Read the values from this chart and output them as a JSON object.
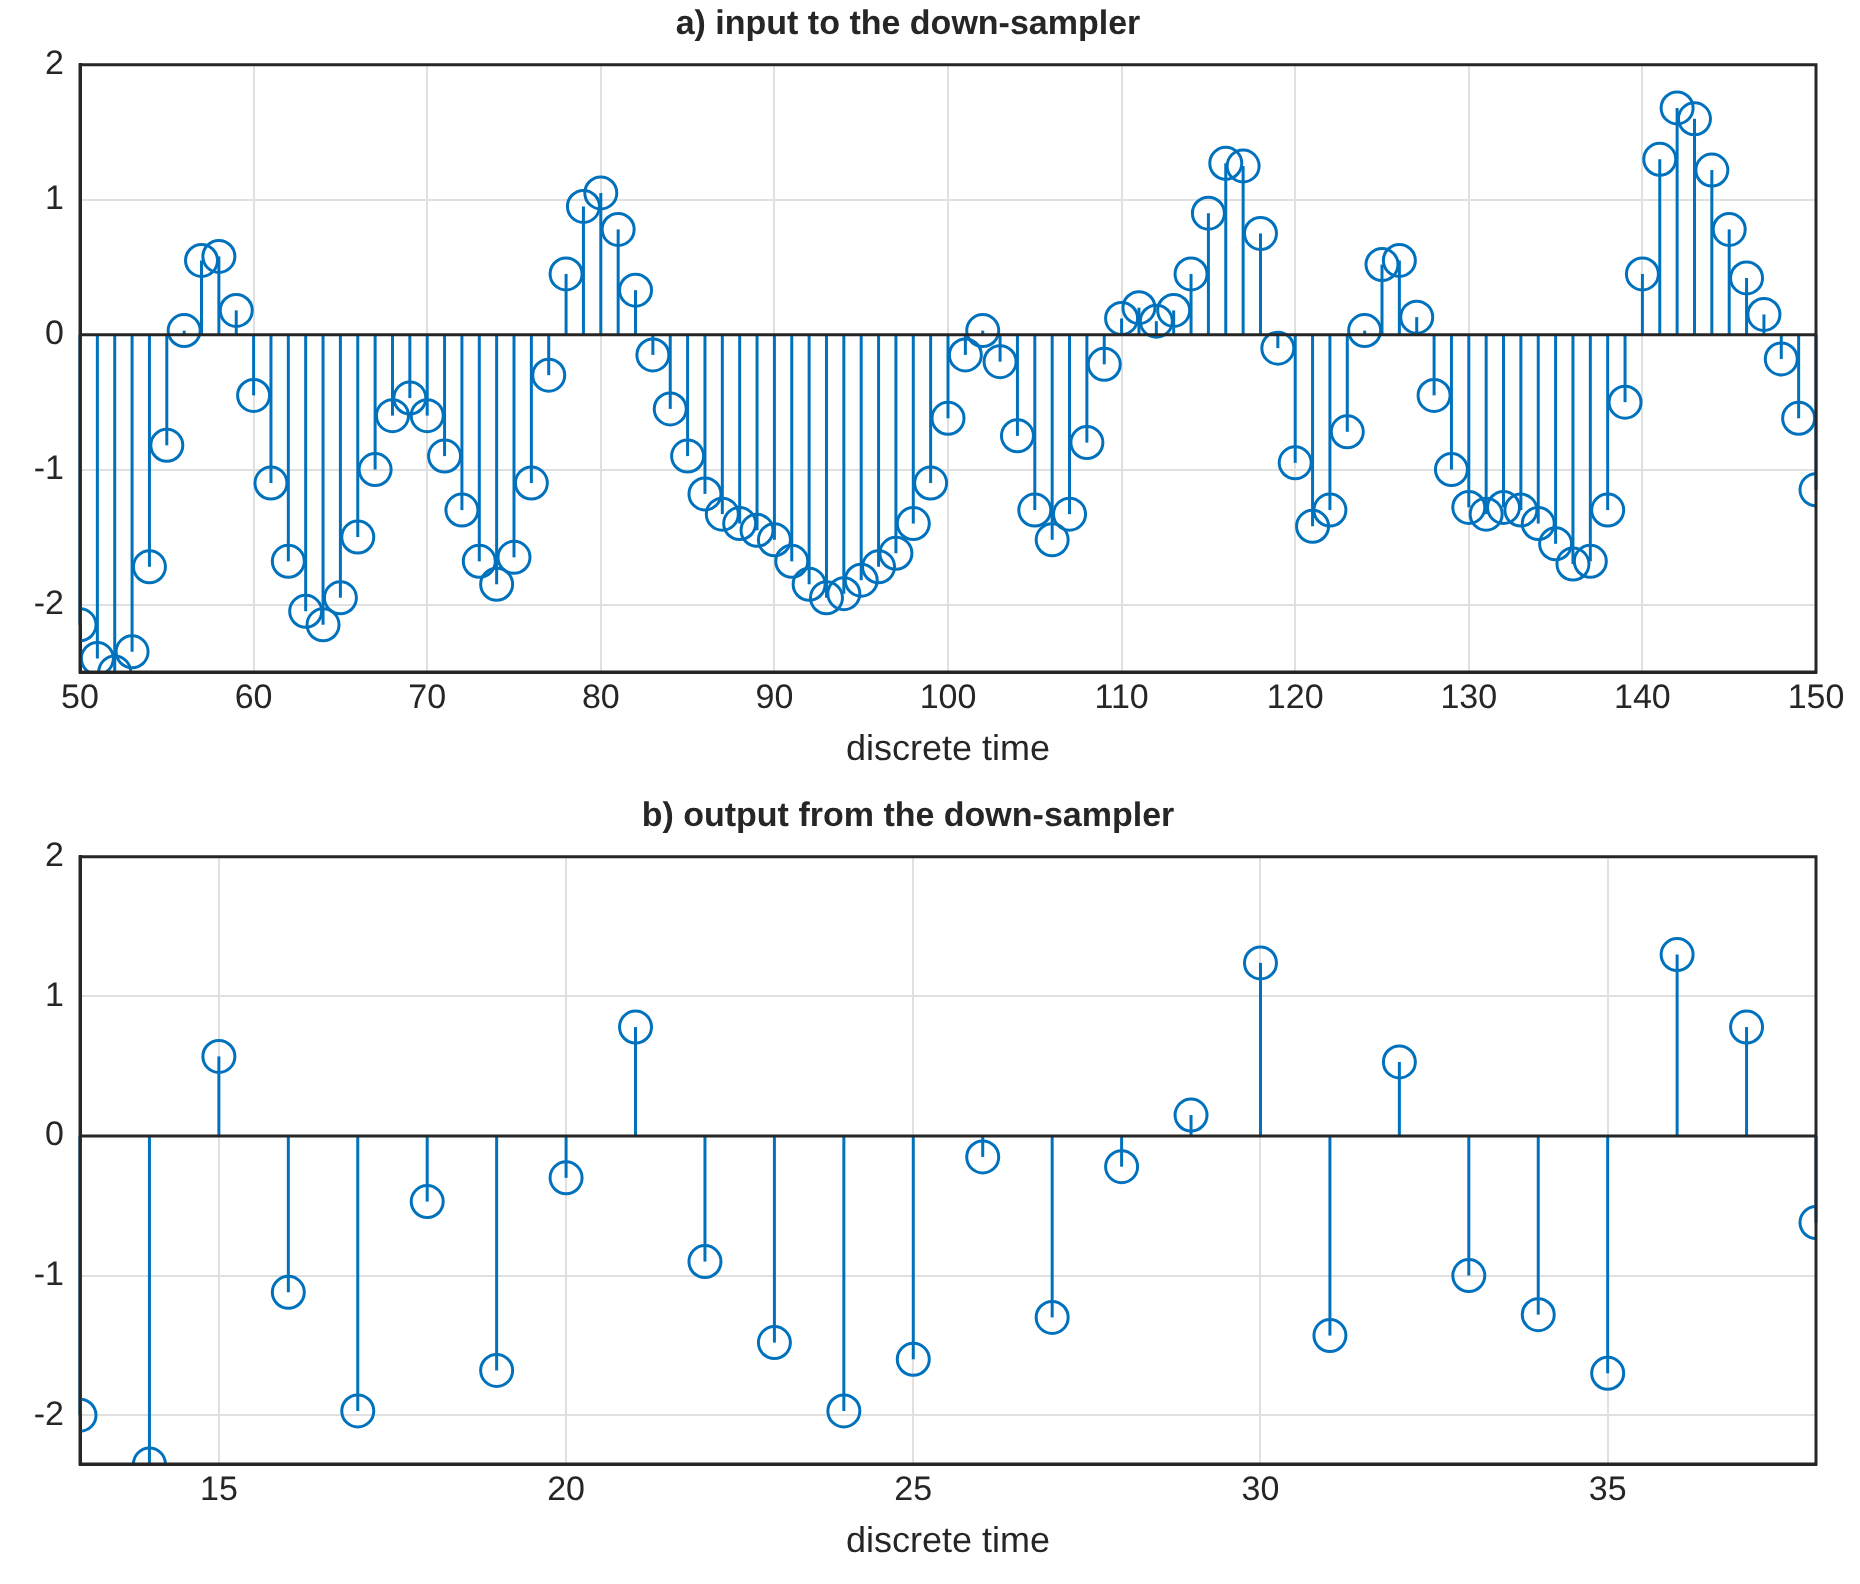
{
  "chart_data": [
    {
      "type": "lollipop",
      "title": "a) input to the down-sampler",
      "xlabel": "discrete time",
      "color": "#0072bd",
      "marker": "circle",
      "grid": true,
      "x": [
        50,
        51,
        52,
        53,
        54,
        55,
        56,
        57,
        58,
        59,
        60,
        61,
        62,
        63,
        64,
        65,
        66,
        67,
        68,
        69,
        70,
        71,
        72,
        73,
        74,
        75,
        76,
        77,
        78,
        79,
        80,
        81,
        82,
        83,
        84,
        85,
        86,
        87,
        88,
        89,
        90,
        91,
        92,
        93,
        94,
        95,
        96,
        97,
        98,
        99,
        100,
        101,
        102,
        103,
        104,
        105,
        106,
        107,
        108,
        109,
        110,
        111,
        112,
        113,
        114,
        115,
        116,
        117,
        118,
        119,
        120,
        121,
        122,
        123,
        124,
        125,
        126,
        127,
        128,
        129,
        130,
        131,
        132,
        133,
        134,
        135,
        136,
        137,
        138,
        139,
        140,
        141,
        142,
        143,
        144,
        145,
        146,
        147,
        148,
        149,
        150
      ],
      "values": [
        -2.15,
        -2.4,
        -2.5,
        -2.35,
        -1.72,
        -0.82,
        0.03,
        0.55,
        0.58,
        0.18,
        -0.45,
        -1.1,
        -1.68,
        -2.05,
        -2.15,
        -1.95,
        -1.5,
        -1.0,
        -0.6,
        -0.47,
        -0.6,
        -0.9,
        -1.3,
        -1.68,
        -1.85,
        -1.65,
        -1.1,
        -0.3,
        0.45,
        0.95,
        1.05,
        0.78,
        0.33,
        -0.15,
        -0.55,
        -0.9,
        -1.18,
        -1.33,
        -1.4,
        -1.45,
        -1.52,
        -1.68,
        -1.85,
        -1.95,
        -1.92,
        -1.82,
        -1.72,
        -1.62,
        -1.4,
        -1.1,
        -0.62,
        -0.15,
        0.03,
        -0.2,
        -0.75,
        -1.3,
        -1.52,
        -1.33,
        -0.8,
        -0.22,
        0.12,
        0.2,
        0.1,
        0.18,
        0.45,
        0.9,
        1.27,
        1.25,
        0.75,
        -0.1,
        -0.95,
        -1.42,
        -1.3,
        -0.72,
        0.03,
        0.52,
        0.55,
        0.13,
        -0.45,
        -1.0,
        -1.28,
        -1.33,
        -1.28,
        -1.3,
        -1.4,
        -1.55,
        -1.7,
        -1.68,
        -1.3,
        -0.5,
        0.45,
        1.3,
        1.68,
        1.6,
        1.22,
        0.78,
        0.42,
        0.15,
        -0.18,
        -0.62,
        -1.15
      ],
      "xlim": [
        50,
        150
      ],
      "xticks": [
        50,
        60,
        70,
        80,
        90,
        100,
        110,
        120,
        130,
        140,
        150
      ],
      "ylim": [
        -2.5,
        2
      ],
      "yticks": [
        -2,
        -1,
        0,
        1,
        2
      ]
    },
    {
      "type": "lollipop",
      "title": "b) output from the down-sampler",
      "xlabel": "discrete time",
      "color": "#0072bd",
      "marker": "circle",
      "grid": true,
      "x": [
        13,
        14,
        15,
        16,
        17,
        18,
        19,
        20,
        21,
        22,
        23,
        24,
        25,
        26,
        27,
        28,
        29,
        30,
        31,
        32,
        33,
        34,
        35,
        36,
        37,
        38
      ],
      "values": [
        -2.0,
        -2.35,
        0.57,
        -1.12,
        -1.97,
        -0.47,
        -1.68,
        -0.3,
        0.78,
        -0.9,
        -1.48,
        -1.97,
        -1.6,
        -0.15,
        -1.3,
        -0.22,
        0.15,
        1.24,
        -1.43,
        0.53,
        -1.0,
        -1.28,
        -1.7,
        1.3,
        0.78,
        -0.62
      ],
      "xlim": [
        13,
        38
      ],
      "xticks": [
        15,
        20,
        25,
        30,
        35
      ],
      "ylim": [
        -2.35,
        2
      ],
      "yticks": [
        -2,
        -1,
        0,
        1,
        2
      ]
    }
  ]
}
